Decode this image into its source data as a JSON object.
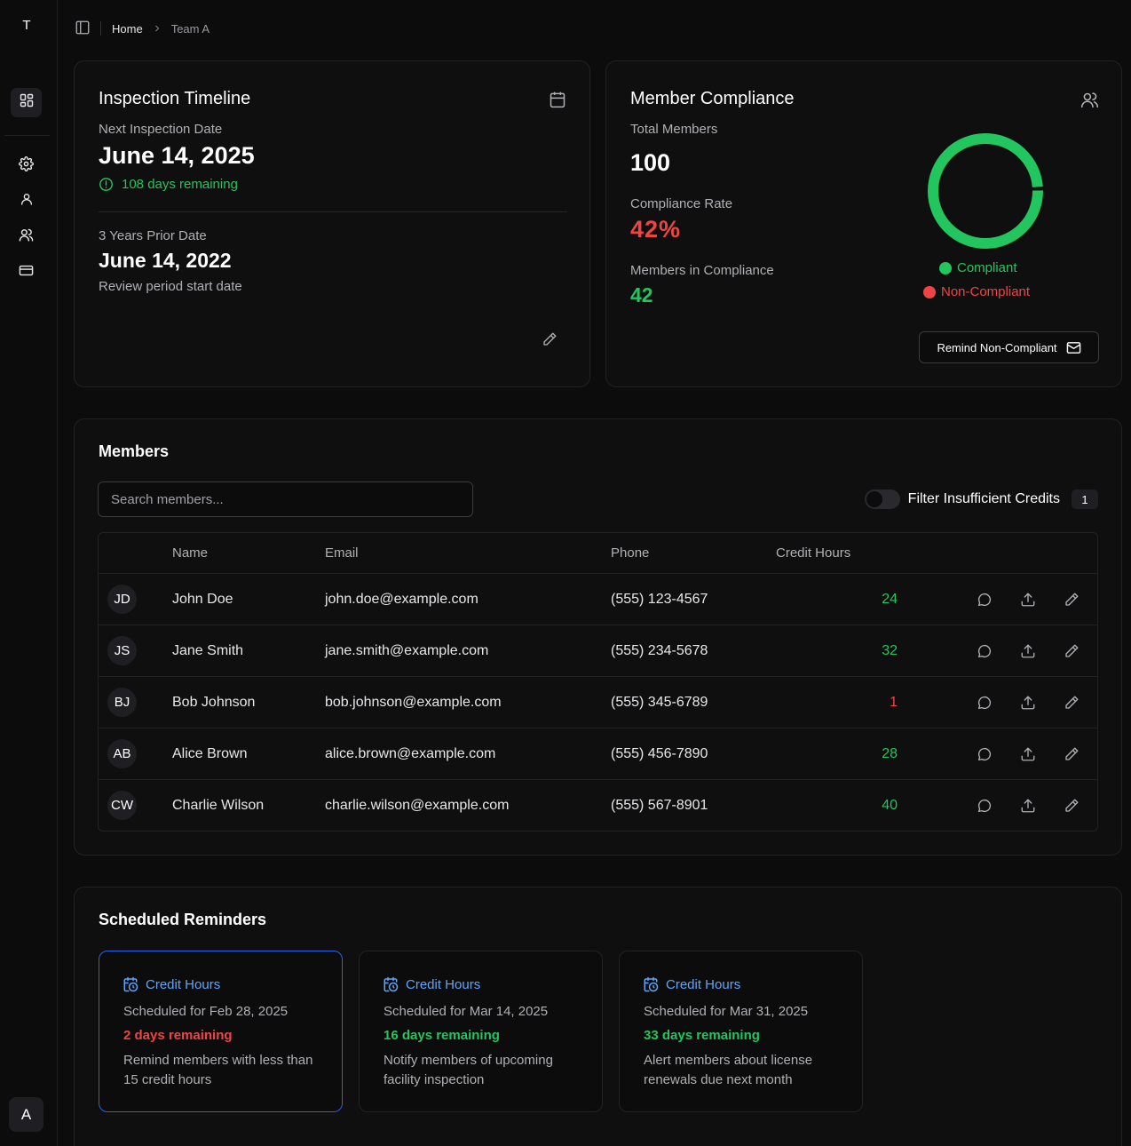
{
  "sidebar": {
    "logo": "T",
    "avatar": "A",
    "icons": [
      "dashboard-icon",
      "gear-icon",
      "user-icon",
      "users-icon",
      "credit-card-icon"
    ]
  },
  "breadcrumb": {
    "home": "Home",
    "current": "Team A"
  },
  "inspection": {
    "title": "Inspection Timeline",
    "next_label": "Next Inspection Date",
    "next_date": "June 14, 2025",
    "days_remaining": "108 days remaining",
    "prior_label": "3 Years Prior Date",
    "prior_date": "June 14, 2022",
    "review_note": "Review period start date"
  },
  "compliance": {
    "title": "Member Compliance",
    "total_label": "Total Members",
    "total_value": "100",
    "rate_label": "Compliance Rate",
    "rate_value": "42%",
    "in_compliance_label": "Members in Compliance",
    "in_compliance_value": "42",
    "legend_compliant": "Compliant",
    "legend_noncompliant": "Non-Compliant",
    "remind_button": "Remind Non-Compliant",
    "colors": {
      "compliant": "#22c55e",
      "noncompliant": "#ef4444"
    }
  },
  "members": {
    "title": "Members",
    "search_placeholder": "Search members...",
    "filter_label": "Filter Insufficient Credits",
    "filter_count": "1",
    "columns": [
      "Name",
      "Email",
      "Phone",
      "Credit Hours"
    ],
    "rows": [
      {
        "initials": "JD",
        "name": "John Doe",
        "email": "john.doe@example.com",
        "phone": "(555) 123-4567",
        "credits": "24",
        "status": "ok"
      },
      {
        "initials": "JS",
        "name": "Jane Smith",
        "email": "jane.smith@example.com",
        "phone": "(555) 234-5678",
        "credits": "32",
        "status": "ok"
      },
      {
        "initials": "BJ",
        "name": "Bob Johnson",
        "email": "bob.johnson@example.com",
        "phone": "(555) 345-6789",
        "credits": "1",
        "status": "low"
      },
      {
        "initials": "AB",
        "name": "Alice Brown",
        "email": "alice.brown@example.com",
        "phone": "(555) 456-7890",
        "credits": "28",
        "status": "ok"
      },
      {
        "initials": "CW",
        "name": "Charlie Wilson",
        "email": "charlie.wilson@example.com",
        "phone": "(555) 567-8901",
        "credits": "40",
        "status": "ok"
      }
    ]
  },
  "reminders": {
    "title": "Scheduled Reminders",
    "items": [
      {
        "type": "Credit Hours",
        "scheduled": "Scheduled for Feb 28, 2025",
        "days": "2 days remaining",
        "urgency": "urgent",
        "description": "Remind members with less than 15 credit hours"
      },
      {
        "type": "Credit Hours",
        "scheduled": "Scheduled for Mar 14, 2025",
        "days": "16 days remaining",
        "urgency": "normal",
        "description": "Notify members of upcoming facility inspection"
      },
      {
        "type": "Credit Hours",
        "scheduled": "Scheduled for Mar 31, 2025",
        "days": "33 days remaining",
        "urgency": "normal",
        "description": "Alert members about license renewals due next month"
      }
    ]
  }
}
